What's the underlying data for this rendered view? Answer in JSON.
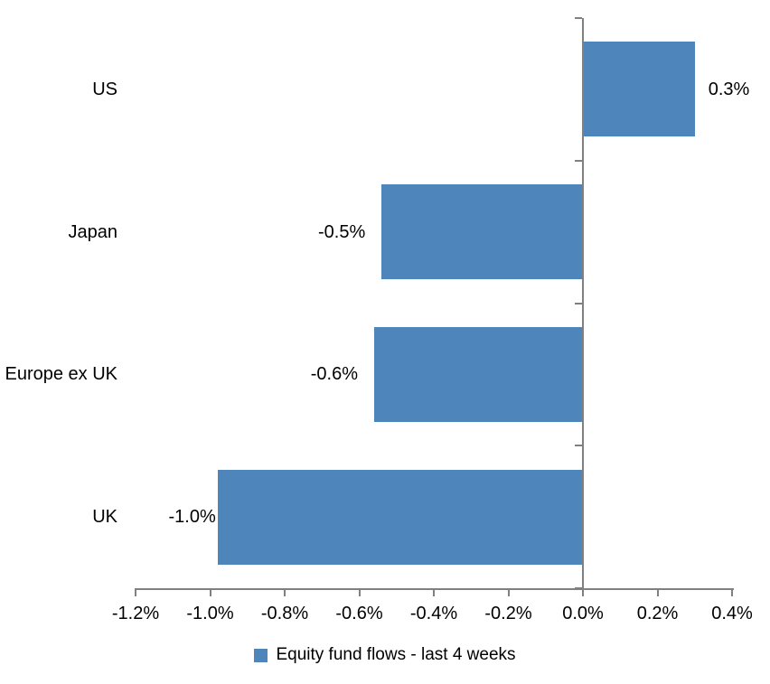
{
  "chart_data": {
    "type": "bar",
    "orientation": "horizontal",
    "title": "",
    "categories": [
      "US",
      "Japan",
      "Europe ex UK",
      "UK"
    ],
    "values": [
      0.3,
      -0.54,
      -0.56,
      -0.98
    ],
    "data_labels": [
      "0.3%",
      "-0.5%",
      "-0.6%",
      "-1.0%"
    ],
    "series": [
      {
        "name": "Equity fund flows - last 4 weeks",
        "values": [
          0.3,
          -0.54,
          -0.56,
          -0.98
        ],
        "printed_labels": [
          "0.3%",
          "-0.5%",
          "-0.6%",
          "-1.0%"
        ]
      }
    ],
    "x_axis": {
      "min": -1.2,
      "max": 0.4,
      "step": 0.2,
      "unit": "%",
      "tick_labels": [
        "-1.2%",
        "-1.0%",
        "-0.8%",
        "-0.6%",
        "-0.4%",
        "-0.2%",
        "0.0%",
        "0.2%",
        "0.4%"
      ]
    },
    "grid": false,
    "legend": [
      "Equity fund flows - last 4 weeks"
    ],
    "legend_position": "bottom",
    "colors": {
      "bar": "#4E86BC",
      "axis": "#808080",
      "text": "#000000",
      "background": "#FFFFFF"
    }
  }
}
